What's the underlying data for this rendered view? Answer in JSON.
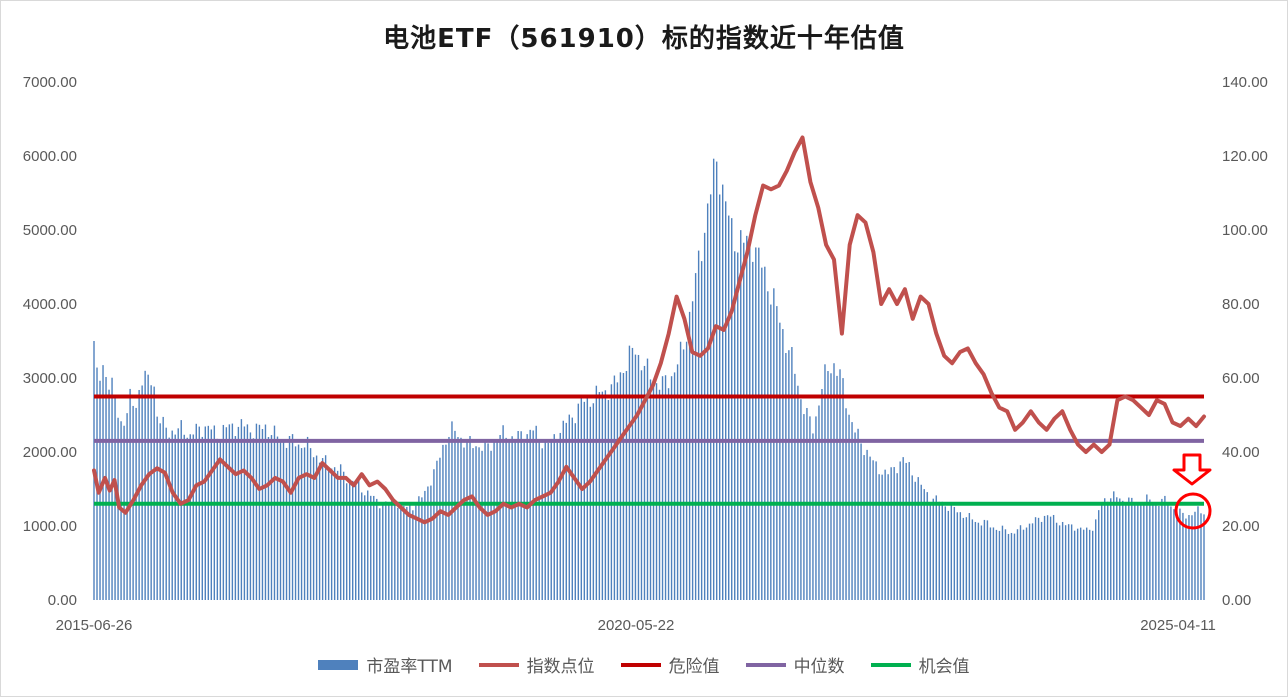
{
  "chart_data": {
    "type": "bar+line",
    "title": "电池ETF（561910）标的指数近十年估值",
    "x_labels": [
      "2015-06-26",
      "2020-05-22",
      "2025-04-11"
    ],
    "y_left": {
      "ylim": [
        0,
        7000
      ],
      "ticks": [
        "0.00",
        "1000.00",
        "2000.00",
        "3000.00",
        "4000.00",
        "5000.00",
        "6000.00",
        "7000.00"
      ]
    },
    "y_right": {
      "ylim": [
        0,
        140
      ],
      "ticks": [
        "0.00",
        "20.00",
        "40.00",
        "60.00",
        "80.00",
        "100.00",
        "120.00",
        "140.00"
      ]
    },
    "series": [
      {
        "name": "市盈率TTM",
        "kind": "bar",
        "axis": "right",
        "color": "#4f81bd",
        "points": [
          [
            0,
            70
          ],
          [
            0.3,
            56
          ],
          [
            0.6,
            64
          ],
          [
            1.0,
            60
          ],
          [
            1.3,
            58
          ],
          [
            1.6,
            52
          ],
          [
            2.0,
            48
          ],
          [
            2.3,
            49
          ],
          [
            2.6,
            54
          ],
          [
            3.0,
            52
          ],
          [
            3.3,
            57
          ],
          [
            3.6,
            61
          ],
          [
            4.0,
            58
          ],
          [
            4.3,
            62
          ],
          [
            4.6,
            50
          ],
          [
            5.0,
            47
          ],
          [
            5.5,
            46
          ],
          [
            6.0,
            45
          ],
          [
            6.5,
            47
          ],
          [
            7.0,
            44
          ],
          [
            7.5,
            46
          ],
          [
            8.0,
            47
          ],
          [
            8.5,
            46
          ],
          [
            9.0,
            45
          ],
          [
            9.5,
            46
          ],
          [
            10.0,
            47
          ],
          [
            10.5,
            47
          ],
          [
            11.0,
            47
          ],
          [
            11.5,
            46
          ],
          [
            12.0,
            46
          ],
          [
            12.5,
            47
          ],
          [
            13.0,
            45
          ],
          [
            13.5,
            44
          ],
          [
            14.0,
            43
          ],
          [
            14.5,
            43
          ],
          [
            15.0,
            42
          ],
          [
            15.5,
            42
          ],
          [
            16.0,
            40
          ],
          [
            16.5,
            38
          ],
          [
            17.0,
            37
          ],
          [
            17.5,
            36
          ],
          [
            18.0,
            35
          ],
          [
            18.5,
            33
          ],
          [
            19.0,
            32
          ],
          [
            19.5,
            30
          ],
          [
            20.0,
            29
          ],
          [
            20.5,
            27
          ],
          [
            21.0,
            26
          ],
          [
            21.5,
            26
          ],
          [
            22.0,
            27
          ],
          [
            22.5,
            25
          ],
          [
            23.0,
            25
          ],
          [
            23.5,
            26
          ],
          [
            24.0,
            28
          ],
          [
            24.5,
            32
          ],
          [
            25.0,
            36
          ],
          [
            25.5,
            42
          ],
          [
            26.0,
            46
          ],
          [
            26.5,
            45
          ],
          [
            27.0,
            43
          ],
          [
            27.5,
            42
          ],
          [
            28.0,
            42
          ],
          [
            28.5,
            41
          ],
          [
            29.0,
            42
          ],
          [
            29.5,
            44
          ],
          [
            30.0,
            45
          ],
          [
            30.5,
            44
          ],
          [
            31.0,
            44
          ],
          [
            31.5,
            45
          ],
          [
            32.0,
            46
          ],
          [
            32.5,
            44
          ],
          [
            33.0,
            42
          ],
          [
            33.5,
            43
          ],
          [
            34.0,
            46
          ],
          [
            34.5,
            48
          ],
          [
            35.0,
            50
          ],
          [
            35.5,
            53
          ],
          [
            36.0,
            54
          ],
          [
            36.5,
            55
          ],
          [
            37.0,
            56
          ],
          [
            37.5,
            57
          ],
          [
            38.0,
            58
          ],
          [
            38.5,
            62
          ],
          [
            39.0,
            65
          ],
          [
            39.5,
            68
          ],
          [
            40.0,
            64
          ],
          [
            40.5,
            61
          ],
          [
            41.0,
            59
          ],
          [
            41.5,
            58
          ],
          [
            42.0,
            60
          ],
          [
            42.5,
            63
          ],
          [
            43.0,
            68
          ],
          [
            43.5,
            78
          ],
          [
            44.0,
            88
          ],
          [
            44.5,
            100
          ],
          [
            45.0,
            110
          ],
          [
            45.5,
            120
          ],
          [
            46.0,
            108
          ],
          [
            46.5,
            100
          ],
          [
            47.0,
            97
          ],
          [
            47.5,
            96
          ],
          [
            48.0,
            98
          ],
          [
            48.5,
            92
          ],
          [
            49.0,
            88
          ],
          [
            49.5,
            82
          ],
          [
            50.0,
            76
          ],
          [
            50.5,
            70
          ],
          [
            51.0,
            64
          ],
          [
            51.5,
            56
          ],
          [
            52.0,
            50
          ],
          [
            52.5,
            46
          ],
          [
            53.0,
            56
          ],
          [
            53.5,
            62
          ],
          [
            54.0,
            64
          ],
          [
            54.5,
            60
          ],
          [
            55.0,
            52
          ],
          [
            55.5,
            46
          ],
          [
            56.0,
            42
          ],
          [
            56.5,
            40
          ],
          [
            57.0,
            36
          ],
          [
            57.5,
            35
          ],
          [
            58.0,
            34
          ],
          [
            58.5,
            36
          ],
          [
            59.0,
            38
          ],
          [
            59.5,
            36
          ],
          [
            60.0,
            33
          ],
          [
            60.5,
            30
          ],
          [
            61.0,
            28
          ],
          [
            61.5,
            27
          ],
          [
            62.0,
            26
          ],
          [
            62.5,
            25
          ],
          [
            63.0,
            24
          ],
          [
            63.5,
            23
          ],
          [
            64.0,
            22
          ],
          [
            64.5,
            21
          ],
          [
            65.0,
            21
          ],
          [
            65.5,
            20
          ],
          [
            66.0,
            19
          ],
          [
            66.5,
            19
          ],
          [
            67.0,
            18
          ],
          [
            67.5,
            19
          ],
          [
            68.0,
            20
          ],
          [
            68.5,
            21
          ],
          [
            69.0,
            22
          ],
          [
            69.5,
            23
          ],
          [
            70.0,
            22
          ],
          [
            70.5,
            21
          ],
          [
            71.0,
            20
          ],
          [
            71.5,
            20
          ],
          [
            72.0,
            19
          ],
          [
            72.5,
            19
          ],
          [
            73.0,
            20
          ],
          [
            73.5,
            26
          ],
          [
            74.0,
            28
          ],
          [
            74.5,
            28
          ],
          [
            75.0,
            27
          ],
          [
            75.5,
            27
          ],
          [
            76.0,
            26
          ],
          [
            76.5,
            27
          ],
          [
            77.0,
            27
          ],
          [
            77.5,
            26
          ],
          [
            78.0,
            27
          ],
          [
            78.5,
            26
          ],
          [
            79.0,
            24
          ],
          [
            79.5,
            23
          ],
          [
            80.0,
            23
          ],
          [
            80.5,
            24
          ],
          [
            81.0,
            24
          ]
        ]
      },
      {
        "name": "指数点位",
        "kind": "line",
        "axis": "left",
        "color": "#c0504d",
        "points": [
          [
            0,
            1750
          ],
          [
            0.3,
            1450
          ],
          [
            0.7,
            1650
          ],
          [
            1.0,
            1480
          ],
          [
            1.3,
            1620
          ],
          [
            1.6,
            1250
          ],
          [
            2.0,
            1180
          ],
          [
            2.5,
            1350
          ],
          [
            3.0,
            1550
          ],
          [
            3.5,
            1700
          ],
          [
            4.0,
            1780
          ],
          [
            4.5,
            1720
          ],
          [
            5.0,
            1450
          ],
          [
            5.5,
            1300
          ],
          [
            6.0,
            1350
          ],
          [
            6.5,
            1550
          ],
          [
            7.0,
            1600
          ],
          [
            7.5,
            1750
          ],
          [
            8.0,
            1900
          ],
          [
            8.5,
            1800
          ],
          [
            9.0,
            1700
          ],
          [
            9.5,
            1750
          ],
          [
            10.0,
            1650
          ],
          [
            10.5,
            1500
          ],
          [
            11.0,
            1550
          ],
          [
            11.5,
            1650
          ],
          [
            12.0,
            1600
          ],
          [
            12.5,
            1450
          ],
          [
            13.0,
            1650
          ],
          [
            13.5,
            1700
          ],
          [
            14.0,
            1650
          ],
          [
            14.5,
            1850
          ],
          [
            15.0,
            1750
          ],
          [
            15.5,
            1650
          ],
          [
            16.0,
            1650
          ],
          [
            16.5,
            1550
          ],
          [
            17.0,
            1700
          ],
          [
            17.5,
            1550
          ],
          [
            18.0,
            1600
          ],
          [
            18.5,
            1500
          ],
          [
            19.0,
            1350
          ],
          [
            19.5,
            1250
          ],
          [
            20.0,
            1150
          ],
          [
            20.5,
            1100
          ],
          [
            21.0,
            1050
          ],
          [
            21.5,
            1100
          ],
          [
            22.0,
            1200
          ],
          [
            22.5,
            1150
          ],
          [
            23.0,
            1250
          ],
          [
            23.5,
            1350
          ],
          [
            24.0,
            1400
          ],
          [
            24.5,
            1250
          ],
          [
            25.0,
            1150
          ],
          [
            25.5,
            1200
          ],
          [
            26.0,
            1300
          ],
          [
            26.5,
            1250
          ],
          [
            27.0,
            1300
          ],
          [
            27.5,
            1250
          ],
          [
            28.0,
            1350
          ],
          [
            28.5,
            1400
          ],
          [
            29.0,
            1450
          ],
          [
            29.5,
            1600
          ],
          [
            30.0,
            1800
          ],
          [
            30.5,
            1650
          ],
          [
            31.0,
            1500
          ],
          [
            31.5,
            1600
          ],
          [
            32.0,
            1750
          ],
          [
            32.5,
            1900
          ],
          [
            33.0,
            2050
          ],
          [
            33.5,
            2200
          ],
          [
            34.0,
            2350
          ],
          [
            34.5,
            2500
          ],
          [
            35.0,
            2700
          ],
          [
            35.5,
            2900
          ],
          [
            36.0,
            3200
          ],
          [
            36.5,
            3600
          ],
          [
            37.0,
            4100
          ],
          [
            37.5,
            3800
          ],
          [
            38.0,
            3350
          ],
          [
            38.5,
            3300
          ],
          [
            39.0,
            3400
          ],
          [
            39.5,
            3700
          ],
          [
            40.0,
            3650
          ],
          [
            40.5,
            3900
          ],
          [
            41.0,
            4300
          ],
          [
            41.5,
            4700
          ],
          [
            42.0,
            5200
          ],
          [
            42.5,
            5600
          ],
          [
            43.0,
            5550
          ],
          [
            43.5,
            5600
          ],
          [
            44.0,
            5800
          ],
          [
            44.5,
            6050
          ],
          [
            45.0,
            6250
          ],
          [
            45.5,
            5650
          ],
          [
            46.0,
            5300
          ],
          [
            46.5,
            4800
          ],
          [
            47.0,
            4600
          ],
          [
            47.5,
            3600
          ],
          [
            48.0,
            4800
          ],
          [
            48.5,
            5200
          ],
          [
            49.0,
            5100
          ],
          [
            49.5,
            4700
          ],
          [
            50.0,
            4000
          ],
          [
            50.5,
            4200
          ],
          [
            51.0,
            4000
          ],
          [
            51.5,
            4200
          ],
          [
            52.0,
            3800
          ],
          [
            52.5,
            4100
          ],
          [
            53.0,
            4000
          ],
          [
            53.5,
            3600
          ],
          [
            54.0,
            3300
          ],
          [
            54.5,
            3200
          ],
          [
            55.0,
            3350
          ],
          [
            55.5,
            3400
          ],
          [
            56.0,
            3200
          ],
          [
            56.5,
            3050
          ],
          [
            57.0,
            2800
          ],
          [
            57.5,
            2600
          ],
          [
            58.0,
            2550
          ],
          [
            58.5,
            2300
          ],
          [
            59.0,
            2400
          ],
          [
            59.5,
            2550
          ],
          [
            60.0,
            2400
          ],
          [
            60.5,
            2300
          ],
          [
            61.0,
            2450
          ],
          [
            61.5,
            2550
          ],
          [
            62.0,
            2300
          ],
          [
            62.5,
            2100
          ],
          [
            63.0,
            2000
          ],
          [
            63.5,
            2100
          ],
          [
            64.0,
            2000
          ],
          [
            64.5,
            2100
          ],
          [
            65.0,
            2700
          ],
          [
            65.5,
            2750
          ],
          [
            66.0,
            2700
          ],
          [
            66.5,
            2600
          ],
          [
            67.0,
            2500
          ],
          [
            67.5,
            2700
          ],
          [
            68.0,
            2650
          ],
          [
            68.5,
            2400
          ],
          [
            69.0,
            2350
          ],
          [
            69.5,
            2450
          ],
          [
            70.0,
            2350
          ],
          [
            70.5,
            2480
          ]
        ]
      },
      {
        "name": "危险值",
        "kind": "hline",
        "axis": "left",
        "value": 2750,
        "color": "#c00000"
      },
      {
        "name": "中位数",
        "kind": "hline",
        "axis": "left",
        "value": 2150,
        "color": "#8064a2"
      },
      {
        "name": "机会值",
        "kind": "hline",
        "axis": "left",
        "value": 1300,
        "color": "#00b050"
      }
    ],
    "annotations": [
      {
        "kind": "arrow-down",
        "color": "#ff0000"
      },
      {
        "kind": "circle",
        "color": "#ff0000"
      }
    ],
    "legend_position": "bottom"
  }
}
